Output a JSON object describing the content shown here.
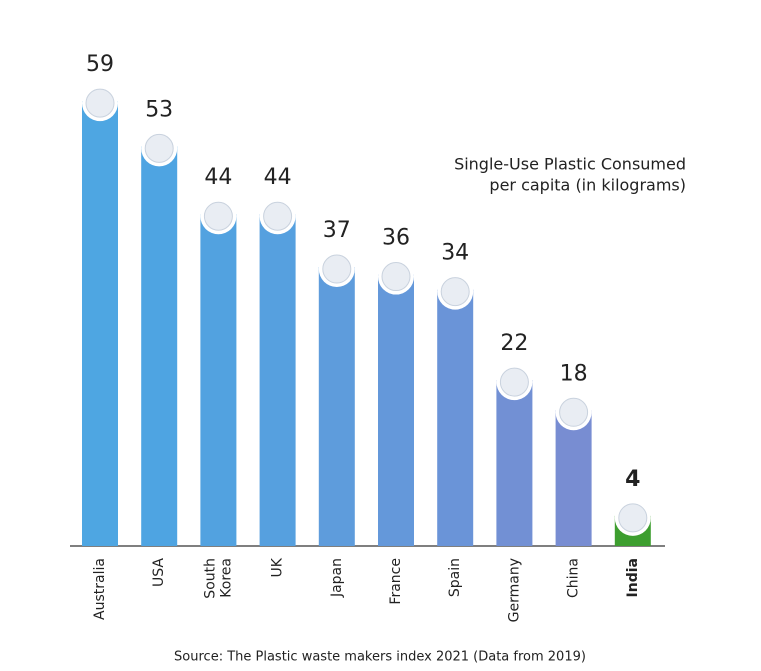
{
  "chart_data": {
    "type": "bar",
    "annotation": [
      "Single-Use Plastic Consumed",
      "per capita (in kilograms)"
    ],
    "source": "Source: The Plastic waste makers index 2021 (Data from 2019)",
    "categories": [
      "Australia",
      "USA",
      "South Korea",
      "UK",
      "Japan",
      "France",
      "Spain",
      "Germany",
      "China",
      "India"
    ],
    "values": [
      59,
      53,
      44,
      44,
      37,
      36,
      34,
      22,
      18,
      4
    ],
    "colors": [
      "#4ea6e2",
      "#4ea4e2",
      "#52a2e0",
      "#56a0df",
      "#5e9cdc",
      "#6498da",
      "#6a94d8",
      "#7290d4",
      "#788dd2",
      "#3d9e2f"
    ],
    "highlight": "India"
  }
}
